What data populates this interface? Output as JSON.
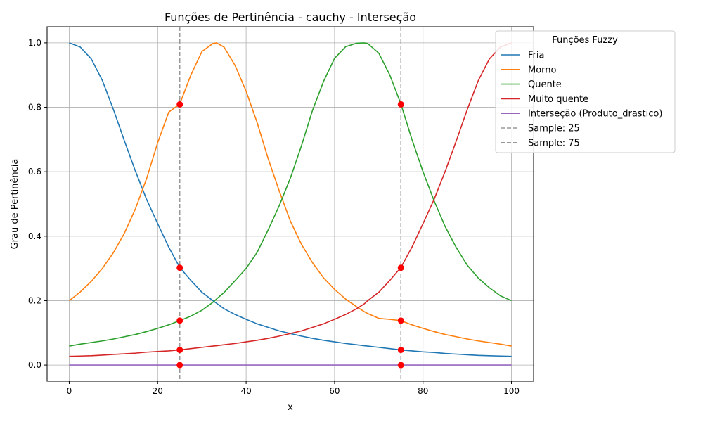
{
  "chart_data": {
    "type": "line",
    "title": "Funções de Pertinência - cauchy - Interseção",
    "xlabel": "x",
    "ylabel": "Grau de Pertinência",
    "xlim": [
      -5,
      105
    ],
    "ylim": [
      -0.05,
      1.05
    ],
    "xticks": [
      0,
      20,
      40,
      60,
      80,
      100
    ],
    "xtick_labels": [
      "0",
      "20",
      "40",
      "60",
      "80",
      "100"
    ],
    "yticks": [
      0.0,
      0.2,
      0.4,
      0.6,
      0.8,
      1.0
    ],
    "ytick_labels": [
      "0.0",
      "0.2",
      "0.4",
      "0.6",
      "0.8",
      "1.0"
    ],
    "grid": true,
    "legend": {
      "title": "Funções Fuzzy",
      "placement": "top-right, outside"
    },
    "x": [
      0,
      2.5,
      5,
      7.5,
      10,
      12.5,
      15,
      17.5,
      20,
      22.5,
      25,
      27.5,
      30,
      32.5,
      33.3,
      35,
      37.5,
      40,
      42.5,
      45,
      47.5,
      50,
      52.5,
      55,
      57.5,
      60,
      62.5,
      65,
      66.7,
      67.5,
      70,
      72.5,
      75,
      77.5,
      80,
      82.5,
      85,
      87.5,
      90,
      92.5,
      95,
      97.5,
      100
    ],
    "series": [
      {
        "name": "Fria",
        "color": "#1f77b4",
        "style": "solid",
        "values": [
          1.0,
          0.987,
          0.95,
          0.883,
          0.793,
          0.695,
          0.601,
          0.514,
          0.439,
          0.366,
          0.303,
          0.263,
          0.226,
          0.2,
          0.192,
          0.175,
          0.157,
          0.142,
          0.128,
          0.117,
          0.106,
          0.098,
          0.09,
          0.083,
          0.077,
          0.072,
          0.067,
          0.063,
          0.06,
          0.059,
          0.055,
          0.051,
          0.047,
          0.044,
          0.041,
          0.039,
          0.036,
          0.034,
          0.032,
          0.03,
          0.029,
          0.028,
          0.027
        ]
      },
      {
        "name": "Morno",
        "color": "#ff7f0e",
        "style": "solid",
        "values": [
          0.2,
          0.227,
          0.26,
          0.3,
          0.349,
          0.41,
          0.486,
          0.579,
          0.69,
          0.785,
          0.81,
          0.9,
          0.973,
          0.998,
          1.0,
          0.987,
          0.93,
          0.85,
          0.752,
          0.64,
          0.54,
          0.447,
          0.375,
          0.318,
          0.271,
          0.235,
          0.205,
          0.181,
          0.166,
          0.16,
          0.145,
          0.142,
          0.138,
          0.125,
          0.114,
          0.104,
          0.095,
          0.088,
          0.081,
          0.075,
          0.07,
          0.065,
          0.059
        ]
      },
      {
        "name": "Quente",
        "color": "#2ca02c",
        "style": "solid",
        "values": [
          0.059,
          0.065,
          0.07,
          0.075,
          0.081,
          0.088,
          0.095,
          0.104,
          0.114,
          0.125,
          0.138,
          0.152,
          0.17,
          0.195,
          0.205,
          0.225,
          0.262,
          0.3,
          0.35,
          0.42,
          0.495,
          0.58,
          0.68,
          0.79,
          0.88,
          0.952,
          0.988,
          0.999,
          1.0,
          0.998,
          0.968,
          0.9,
          0.81,
          0.7,
          0.6,
          0.51,
          0.43,
          0.365,
          0.31,
          0.27,
          0.24,
          0.215,
          0.2
        ]
      },
      {
        "name": "Muito quente",
        "color": "#d62728",
        "style": "solid",
        "values": [
          0.027,
          0.028,
          0.029,
          0.031,
          0.033,
          0.035,
          0.037,
          0.04,
          0.042,
          0.044,
          0.047,
          0.051,
          0.055,
          0.059,
          0.06,
          0.063,
          0.067,
          0.072,
          0.077,
          0.083,
          0.09,
          0.098,
          0.106,
          0.117,
          0.128,
          0.142,
          0.157,
          0.175,
          0.19,
          0.2,
          0.226,
          0.263,
          0.303,
          0.366,
          0.439,
          0.514,
          0.601,
          0.695,
          0.793,
          0.883,
          0.95,
          0.987,
          1.0
        ]
      },
      {
        "name": "Interseção (Produto_drastico)",
        "color": "#9467bd",
        "style": "solid",
        "values": [
          0,
          0,
          0,
          0,
          0,
          0,
          0,
          0,
          0,
          0,
          0,
          0,
          0,
          0,
          0,
          0,
          0,
          0,
          0,
          0,
          0,
          0,
          0,
          0,
          0,
          0,
          0,
          0,
          0,
          0,
          0,
          0,
          0,
          0,
          0,
          0,
          0,
          0,
          0,
          0,
          0,
          0,
          0
        ]
      }
    ],
    "vlines": [
      {
        "name": "Sample: 25",
        "x": 25,
        "color": "#999999",
        "style": "dashed"
      },
      {
        "name": "Sample: 75",
        "x": 75,
        "color": "#999999",
        "style": "dashed"
      }
    ],
    "sample_points": {
      "color": "#ff0000",
      "points": [
        {
          "x": 25,
          "y": 0.809
        },
        {
          "x": 25,
          "y": 0.302
        },
        {
          "x": 25,
          "y": 0.138
        },
        {
          "x": 25,
          "y": 0.047
        },
        {
          "x": 25,
          "y": 0.0
        },
        {
          "x": 75,
          "y": 0.809
        },
        {
          "x": 75,
          "y": 0.302
        },
        {
          "x": 75,
          "y": 0.138
        },
        {
          "x": 75,
          "y": 0.047
        },
        {
          "x": 75,
          "y": 0.0
        }
      ]
    }
  }
}
